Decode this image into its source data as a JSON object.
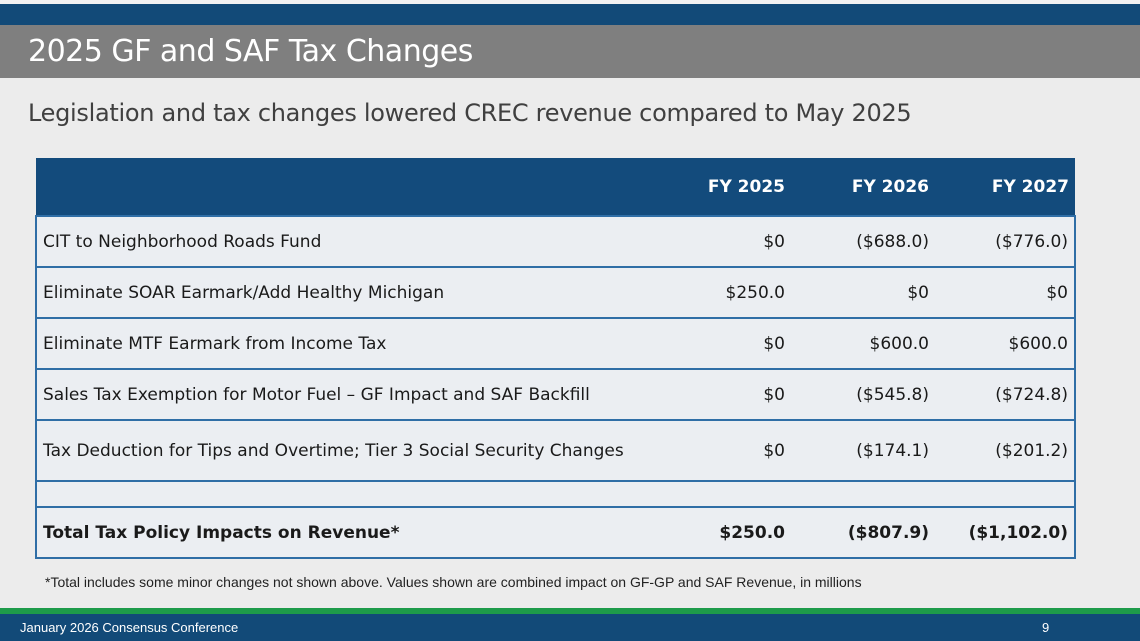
{
  "title": "2025 GF and SAF Tax Changes",
  "subtitle": "Legislation and tax changes lowered CREC revenue compared to May 2025",
  "table": {
    "headers": [
      "",
      "FY 2025",
      "FY 2026",
      "FY 2027"
    ],
    "rows": [
      [
        "CIT to Neighborhood Roads Fund",
        "$0",
        "($688.0)",
        "($776.0)"
      ],
      [
        "Eliminate SOAR Earmark/Add Healthy Michigan",
        "$250.0",
        "$0",
        "$0"
      ],
      [
        "Eliminate MTF Earmark from Income Tax",
        "$0",
        "$600.0",
        "$600.0"
      ],
      [
        "Sales Tax Exemption for Motor Fuel – GF Impact and SAF Backfill",
        "$0",
        "($545.8)",
        "($724.8)"
      ],
      [
        "Tax Deduction for Tips and Overtime; Tier 3 Social Security Changes",
        "$0",
        "($174.1)",
        "($201.2)"
      ]
    ],
    "total": [
      "Total Tax Policy Impacts on Revenue*",
      "$250.0",
      "($807.9)",
      "($1,102.0)"
    ]
  },
  "footnote": "*Total includes some minor changes not shown above. Values shown are combined impact on GF-GP and SAF Revenue, in millions",
  "footer": {
    "left": "January 2026 Consensus Conference",
    "page": "9"
  }
}
